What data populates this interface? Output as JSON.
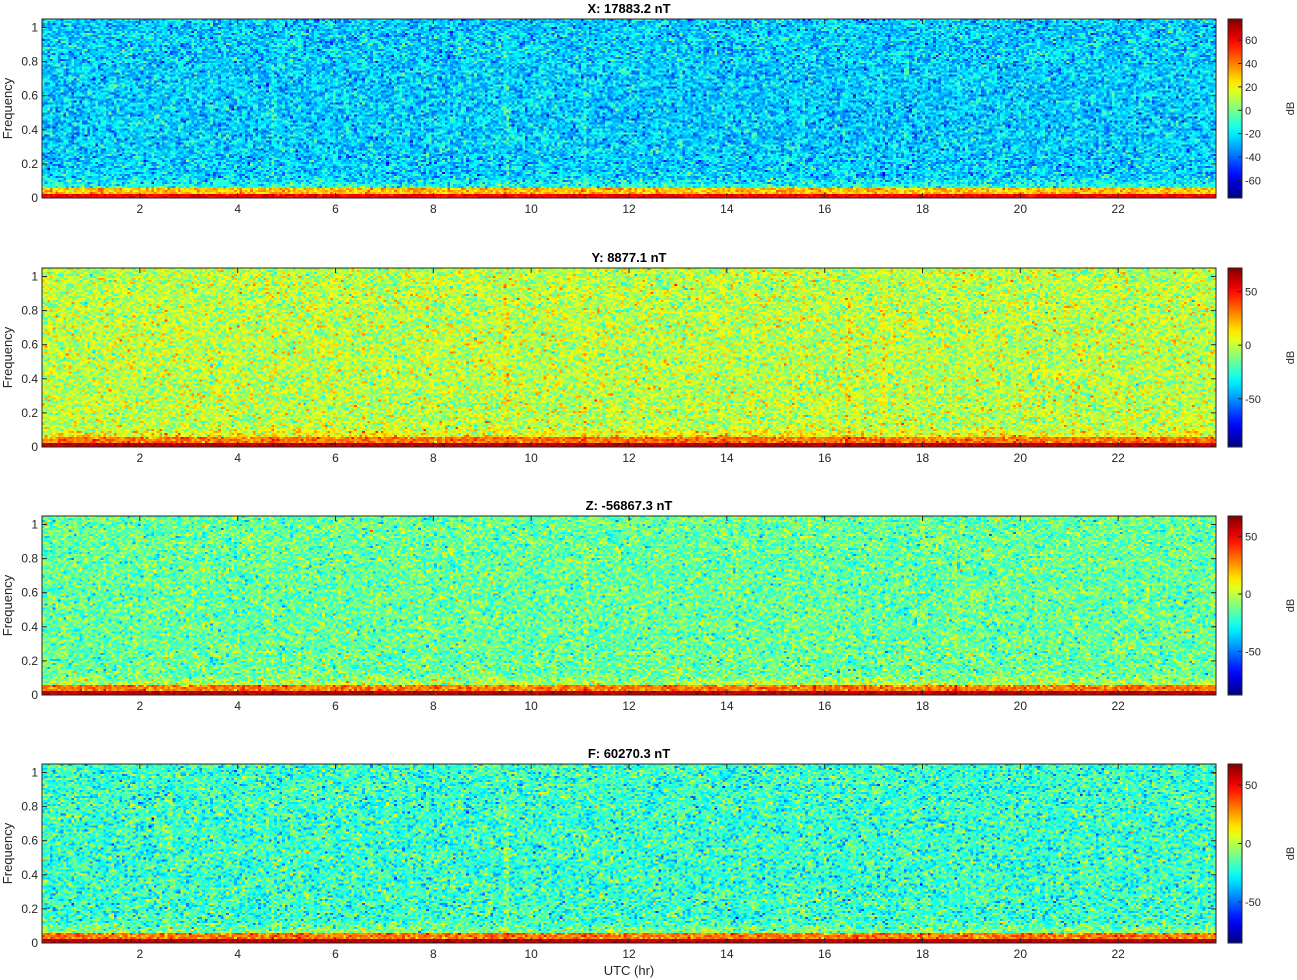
{
  "chart_data": [
    {
      "type": "heatmap",
      "title": "X: 17883.2 nT",
      "ylabel": "Frequency",
      "xlabel": "",
      "xlim": [
        0,
        24
      ],
      "ylim": [
        0,
        1.05
      ],
      "xticks": [
        2,
        4,
        6,
        8,
        10,
        12,
        14,
        16,
        18,
        20,
        22
      ],
      "xtick_labels": [
        "2",
        "4",
        "6",
        "8",
        "10",
        "12",
        "14",
        "16",
        "18",
        "20",
        "22"
      ],
      "yticks": [
        0,
        0.2,
        0.4,
        0.6,
        0.8,
        1
      ],
      "ytick_labels": [
        "0",
        "0.2",
        "0.4",
        "0.6",
        "0.8",
        "1"
      ],
      "colorbar": {
        "label": "dB",
        "range": [
          -75,
          78
        ],
        "ticks": [
          -60,
          -40,
          -20,
          0,
          20,
          40,
          60
        ],
        "tick_labels": [
          "-60",
          "-40",
          "-20",
          "0",
          "20",
          "40",
          "60"
        ],
        "colormap": "jet"
      },
      "background_db": -25,
      "noise_db": 11,
      "low_freq_band_db": [
        60,
        30
      ],
      "vertical_streaks_hr": [
        4.7,
        9.5,
        11.1
      ]
    },
    {
      "type": "heatmap",
      "title": "Y: 8877.1 nT",
      "ylabel": "Frequency",
      "xlabel": "",
      "xlim": [
        0,
        24
      ],
      "ylim": [
        0,
        1.05
      ],
      "xticks": [
        2,
        4,
        6,
        8,
        10,
        12,
        14,
        16,
        18,
        20,
        22
      ],
      "xtick_labels": [
        "2",
        "4",
        "6",
        "8",
        "10",
        "12",
        "14",
        "16",
        "18",
        "20",
        "22"
      ],
      "yticks": [
        0,
        0.2,
        0.4,
        0.6,
        0.8,
        1
      ],
      "ytick_labels": [
        "0",
        "0.2",
        "0.4",
        "0.6",
        "0.8",
        "1"
      ],
      "colorbar": {
        "label": "dB",
        "range": [
          -95,
          72
        ],
        "ticks": [
          -50,
          0,
          50
        ],
        "tick_labels": [
          "-50",
          "0",
          "50"
        ],
        "colormap": "jet"
      },
      "background_db": -2,
      "noise_db": 12,
      "low_freq_band_db": [
        62,
        32
      ],
      "vertical_streaks_hr": [
        4.7,
        9.5,
        11.1,
        16.5,
        17.2
      ]
    },
    {
      "type": "heatmap",
      "title": "Z: -56867.3 nT",
      "ylabel": "Frequency",
      "xlabel": "",
      "xlim": [
        0,
        24
      ],
      "ylim": [
        0,
        1.05
      ],
      "xticks": [
        2,
        4,
        6,
        8,
        10,
        12,
        14,
        16,
        18,
        20,
        22
      ],
      "xtick_labels": [
        "2",
        "4",
        "6",
        "8",
        "10",
        "12",
        "14",
        "16",
        "18",
        "20",
        "22"
      ],
      "yticks": [
        0,
        0.2,
        0.4,
        0.6,
        0.8,
        1
      ],
      "ytick_labels": [
        "0",
        "0.2",
        "0.4",
        "0.6",
        "0.8",
        "1"
      ],
      "colorbar": {
        "label": "dB",
        "range": [
          -88,
          68
        ],
        "ticks": [
          -50,
          0,
          50
        ],
        "tick_labels": [
          "-50",
          "0",
          "50"
        ],
        "colormap": "jet"
      },
      "background_db": -14,
      "noise_db": 11,
      "low_freq_band_db": [
        58,
        30
      ],
      "vertical_streaks_hr": [
        4.7,
        11.1,
        18.7
      ]
    },
    {
      "type": "heatmap",
      "title": "F: 60270.3 nT",
      "ylabel": "Frequency",
      "xlabel": "UTC (hr)",
      "xlim": [
        0,
        24
      ],
      "ylim": [
        0,
        1.05
      ],
      "xticks": [
        2,
        4,
        6,
        8,
        10,
        12,
        14,
        16,
        18,
        20,
        22
      ],
      "xtick_labels": [
        "2",
        "4",
        "6",
        "8",
        "10",
        "12",
        "14",
        "16",
        "18",
        "20",
        "22"
      ],
      "yticks": [
        0,
        0.2,
        0.4,
        0.6,
        0.8,
        1
      ],
      "ytick_labels": [
        "0",
        "0.2",
        "0.4",
        "0.6",
        "0.8",
        "1"
      ],
      "colorbar": {
        "label": "dB",
        "range": [
          -85,
          68
        ],
        "ticks": [
          -50,
          0,
          50
        ],
        "tick_labels": [
          "-50",
          "0",
          "50"
        ],
        "colormap": "jet"
      },
      "background_db": -20,
      "noise_db": 12,
      "low_freq_band_db": [
        58,
        30
      ],
      "vertical_streaks_hr": [
        2.6,
        4.7,
        9.5
      ]
    }
  ]
}
